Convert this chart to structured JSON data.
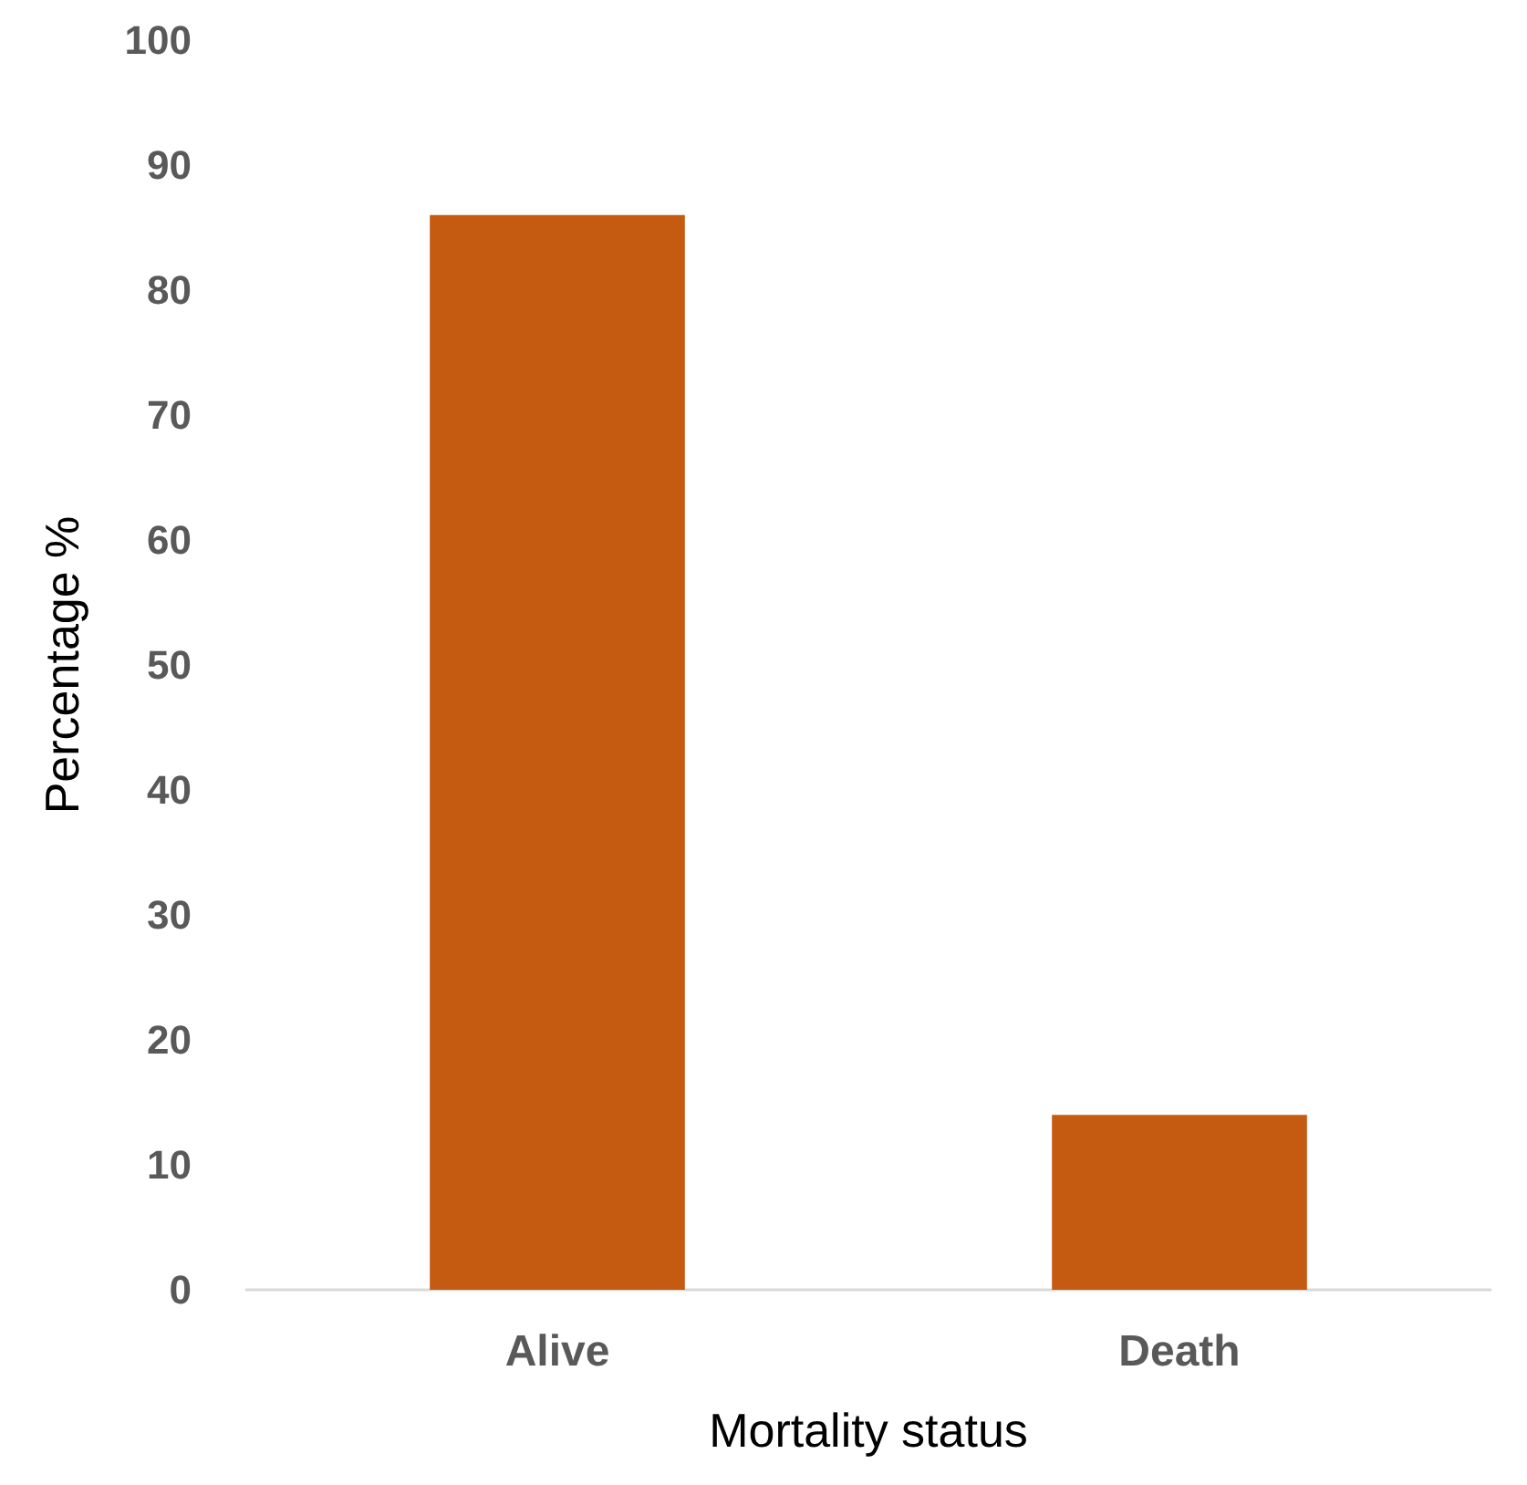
{
  "chart_data": {
    "type": "bar",
    "xlabel": "Mortality status",
    "ylabel": "Percentage %",
    "categories": [
      "Alive",
      "Death"
    ],
    "values": [
      86,
      14
    ],
    "color": "#c55a11",
    "ylim": [
      0,
      100
    ],
    "yticks": [
      0,
      10,
      20,
      30,
      40,
      50,
      60,
      70,
      80,
      90,
      100
    ],
    "grid": false
  }
}
